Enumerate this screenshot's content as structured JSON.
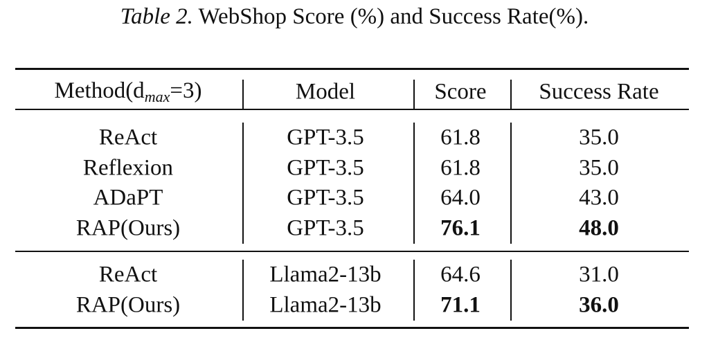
{
  "caption": {
    "label": "Table 2.",
    "text": "WebShop Score (%) and Success Rate(%)."
  },
  "table": {
    "header": [
      {
        "text": "Method(d",
        "sub": "max",
        "after": "=3)"
      },
      "Model",
      "Score",
      "Success Rate"
    ],
    "groups": [
      [
        {
          "cells": [
            "ReAct",
            "GPT-3.5",
            "61.8",
            "35.0"
          ],
          "bold": false
        },
        {
          "cells": [
            "Reflexion",
            "GPT-3.5",
            "61.8",
            "35.0"
          ],
          "bold": false
        },
        {
          "cells": [
            "ADaPT",
            "GPT-3.5",
            "64.0",
            "43.0"
          ],
          "bold": false
        },
        {
          "cells": [
            "RAP(Ours)",
            "GPT-3.5",
            "76.1",
            "48.0"
          ],
          "bold": true
        }
      ],
      [
        {
          "cells": [
            "ReAct",
            "Llama2-13b",
            "64.6",
            "31.0"
          ],
          "bold": false
        },
        {
          "cells": [
            "RAP(Ours)",
            "Llama2-13b",
            "71.1",
            "36.0"
          ],
          "bold": true
        }
      ]
    ]
  }
}
